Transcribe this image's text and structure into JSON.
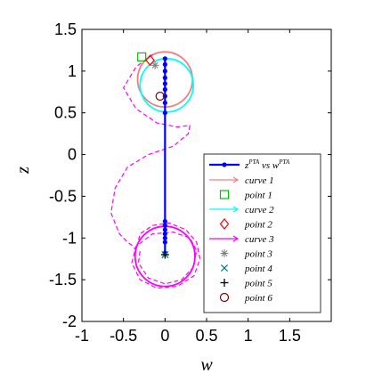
{
  "chart_data": {
    "type": "line",
    "title": "",
    "xlabel": "w",
    "ylabel": "z",
    "xlim": [
      -1,
      2
    ],
    "ylim": [
      -2,
      1.5
    ],
    "xticks": [
      "-1",
      "-0.5",
      "0",
      "0.5",
      "1",
      "1.5"
    ],
    "yticks": [
      "1.5",
      "1",
      "0.5",
      "0",
      "-0.5",
      "-1",
      "-1.5",
      "-2"
    ],
    "grid": false,
    "legend_position": "bottom-right",
    "colors": {
      "pta": "#0000ff",
      "curve1": "#f08080",
      "curve2": "#00ffff",
      "curve3": "#ff00ff",
      "point1": "#00c000",
      "point2": "#ff0000",
      "point3": "#808080",
      "point4": "#008080",
      "point5": "#000000",
      "point6": "#8b0000"
    },
    "series": [
      {
        "name": "z^{PTA} vs w^{PTA}",
        "legend_main": "z",
        "legend_sup1": "PTA",
        "legend_mid": " vs w",
        "legend_sup2": "PTA",
        "style": "solid-dot",
        "x": [
          0,
          0,
          0,
          0,
          0,
          0,
          0,
          0,
          0,
          0,
          0,
          0,
          0,
          0,
          0,
          0
        ],
        "y": [
          1.15,
          1.08,
          1.0,
          0.92,
          0.85,
          0.78,
          0.7,
          0.62,
          0.5,
          -0.8,
          -0.85,
          -0.9,
          -0.95,
          -1.0,
          -1.05,
          -1.18
        ]
      },
      {
        "name": "curve 1",
        "style": "circle",
        "center": [
          0,
          0.9
        ],
        "radius": 0.33
      },
      {
        "name": "curve 2",
        "style": "circle",
        "center": [
          0.02,
          0.83
        ],
        "radius": 0.32
      },
      {
        "name": "curve 3",
        "style": "dashed-spiral",
        "x": [
          -0.15,
          -0.35,
          -0.5,
          -0.35,
          -0.1,
          0.15,
          0.3,
          0.28,
          0.1,
          -0.2,
          -0.45,
          -0.6,
          -0.65,
          -0.55,
          -0.45,
          -0.38,
          -0.35,
          -0.3,
          -0.15,
          0.05,
          0.25,
          0.38,
          0.42,
          0.35,
          0.15,
          -0.1,
          -0.3,
          -0.4,
          -0.35,
          -0.15,
          0.1,
          0.3,
          0.38,
          0.34,
          0.2,
          0.0,
          -0.2,
          -0.32,
          -0.3
        ],
        "y": [
          1.2,
          1.05,
          0.8,
          0.55,
          0.38,
          0.33,
          0.35,
          0.25,
          0.1,
          0.0,
          -0.15,
          -0.4,
          -0.7,
          -0.95,
          -1.05,
          -1.1,
          -1.15,
          -0.95,
          -0.85,
          -0.82,
          -0.9,
          -1.05,
          -1.25,
          -1.45,
          -1.58,
          -1.6,
          -1.5,
          -1.3,
          -1.1,
          -0.95,
          -0.93,
          -1.0,
          -1.15,
          -1.35,
          -1.5,
          -1.55,
          -1.48,
          -1.3,
          -1.15
        ]
      },
      {
        "name": "curve 3 (solid)",
        "style": "circle",
        "center": [
          0,
          -1.22
        ],
        "radius": 0.36
      }
    ],
    "points": [
      {
        "name": "point 1",
        "x": -0.28,
        "y": 1.17,
        "marker": "square"
      },
      {
        "name": "point 2",
        "x": -0.18,
        "y": 1.13,
        "marker": "diamond"
      },
      {
        "name": "point 3",
        "x": -0.12,
        "y": 1.07,
        "marker": "asterisk"
      },
      {
        "name": "point 4",
        "x": 0,
        "y": -1.2,
        "marker": "x"
      },
      {
        "name": "point 5",
        "x": 0,
        "y": -1.2,
        "marker": "plus"
      },
      {
        "name": "point 6",
        "x": -0.06,
        "y": 0.7,
        "marker": "circle"
      }
    ],
    "legend": [
      {
        "label": "curve 1",
        "symbol": "arrow",
        "color": "#f08080"
      },
      {
        "label": "point 1",
        "symbol": "square",
        "color": "#00c000"
      },
      {
        "label": "curve 2",
        "symbol": "arrow",
        "color": "#00ffff"
      },
      {
        "label": "point 2",
        "symbol": "diamond",
        "color": "#ff0000"
      },
      {
        "label": "curve 3",
        "symbol": "arrow",
        "color": "#ff00ff"
      },
      {
        "label": "point 3",
        "symbol": "asterisk",
        "color": "#808080"
      },
      {
        "label": "point 4",
        "symbol": "x",
        "color": "#008080"
      },
      {
        "label": "point 5",
        "symbol": "plus",
        "color": "#000000"
      },
      {
        "label": "point 6",
        "symbol": "circle",
        "color": "#8b0000"
      }
    ]
  }
}
